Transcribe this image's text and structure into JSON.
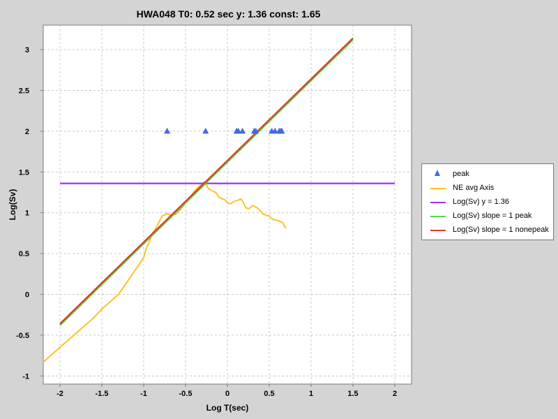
{
  "chart_data": {
    "type": "line",
    "title": "HWA048 T0: 0.52 sec  y: 1.36 const: 1.65",
    "xlabel": "Log T(sec)",
    "ylabel": "Log(Sv)",
    "xlim": [
      -2.2,
      2.2
    ],
    "ylim": [
      -1.1,
      3.3
    ],
    "xticks": [
      -2,
      -1.5,
      -1,
      -0.5,
      0,
      0.5,
      1,
      1.5,
      2
    ],
    "xtick_labels": [
      "-2",
      "-1.5",
      "-1",
      "-0.5",
      "0",
      "0.5",
      "1",
      "1.5",
      "2"
    ],
    "yticks": [
      -1,
      -0.5,
      0,
      0.5,
      1,
      1.5,
      2,
      2.5,
      3
    ],
    "ytick_labels": [
      "-1",
      "-0.5",
      "0",
      "0.5",
      "1",
      "1.5",
      "2",
      "2.5",
      "3"
    ],
    "grid": true,
    "legend_position": "right",
    "series": [
      {
        "name": "peak",
        "kind": "scatter",
        "marker": "triangle",
        "color": "#4169e1",
        "x": [
          -0.72,
          -0.26,
          0.11,
          0.13,
          0.18,
          0.32,
          0.34,
          0.53,
          0.57,
          0.62,
          0.64,
          0.65
        ],
        "y": [
          2,
          2,
          2,
          2,
          2,
          2,
          2,
          2,
          2,
          2,
          2,
          2
        ]
      },
      {
        "name": "NE avg Axis",
        "kind": "line",
        "color": "#ffc125",
        "x": [
          -2.2,
          -2.0,
          -1.8,
          -1.6,
          -1.5,
          -1.4,
          -1.3,
          -1.2,
          -1.1,
          -1.0,
          -0.97,
          -0.93,
          -0.9,
          -0.86,
          -0.82,
          -0.78,
          -0.72,
          -0.68,
          -0.62,
          -0.56,
          -0.5,
          -0.44,
          -0.38,
          -0.33,
          -0.29,
          -0.27,
          -0.25,
          -0.22,
          -0.18,
          -0.14,
          -0.1,
          -0.06,
          -0.03,
          0.0,
          0.04,
          0.08,
          0.12,
          0.16,
          0.19,
          0.22,
          0.26,
          0.3,
          0.34,
          0.38,
          0.42,
          0.46,
          0.5,
          0.54,
          0.58,
          0.62,
          0.66,
          0.68,
          0.7
        ],
        "y": [
          -0.83,
          -0.65,
          -0.47,
          -0.29,
          -0.18,
          -0.09,
          0.0,
          0.15,
          0.3,
          0.45,
          0.56,
          0.65,
          0.74,
          0.8,
          0.88,
          0.96,
          0.99,
          0.97,
          0.98,
          1.04,
          1.12,
          1.2,
          1.28,
          1.33,
          1.37,
          1.38,
          1.34,
          1.29,
          1.27,
          1.25,
          1.19,
          1.17,
          1.16,
          1.12,
          1.11,
          1.14,
          1.15,
          1.17,
          1.13,
          1.06,
          1.05,
          1.09,
          1.07,
          1.04,
          0.99,
          0.97,
          0.96,
          0.92,
          0.91,
          0.9,
          0.88,
          0.84,
          0.81
        ]
      },
      {
        "name": "Log(Sv) y = 1.36",
        "kind": "line",
        "color": "#9b30ff",
        "x": [
          -2.0,
          2.0
        ],
        "y": [
          1.36,
          1.36
        ]
      },
      {
        "name": "Log(Sv) slope = 1 peak",
        "kind": "line",
        "color": "#4cd84c",
        "x": [
          -2.0,
          1.5
        ],
        "y": [
          -0.38,
          3.12
        ]
      },
      {
        "name": "Log(Sv) slope = 1 nonepeak",
        "kind": "line",
        "color": "#e0392b",
        "x": [
          -2.0,
          1.5
        ],
        "y": [
          -0.36,
          3.14
        ]
      }
    ]
  }
}
